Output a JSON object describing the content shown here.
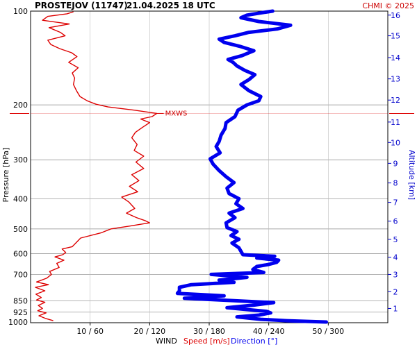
{
  "header": {
    "station": "PROSTEJOV (11747)",
    "datetime": "21.04.2025 18 UTC",
    "copyright": "CHMI © 2025"
  },
  "chart_data": {
    "type": "line",
    "y_axis": {
      "label": "Pressure [hPa]",
      "scale": "log",
      "range": [
        1000,
        100
      ],
      "ticks": [
        100,
        200,
        300,
        400,
        500,
        600,
        700,
        850,
        925,
        1000
      ]
    },
    "x_axis": {
      "title": "WIND",
      "speed_label": "Speed [m/s]",
      "direction_label": "Direction [°]",
      "ticks": [
        "10 / 60",
        "20 / 120",
        "30 / 180",
        "40 / 240",
        "50 / 300"
      ],
      "speed_range": [
        0,
        60
      ],
      "direction_range": [
        0,
        360
      ]
    },
    "altitude_axis": {
      "label": "Altitude [km]",
      "ticks": [
        1,
        2,
        3,
        4,
        5,
        6,
        7,
        8,
        9,
        10,
        11,
        12,
        13,
        14,
        15,
        16
      ]
    },
    "altitude_km_to_hpa": [
      [
        1,
        900
      ],
      [
        2,
        795
      ],
      [
        3,
        700
      ],
      [
        4,
        616
      ],
      [
        5,
        540
      ],
      [
        6,
        472
      ],
      [
        7,
        411
      ],
      [
        8,
        356
      ],
      [
        9,
        308
      ],
      [
        10,
        264
      ],
      [
        11,
        227
      ],
      [
        12,
        193
      ],
      [
        13,
        165
      ],
      [
        14,
        141
      ],
      [
        15,
        120
      ],
      [
        16,
        103
      ]
    ],
    "max_wind": {
      "label": "MXWS",
      "pressure": 213,
      "speed": 21.2
    },
    "series": [
      {
        "name": "Speed [m/s]",
        "color": "#dd0000",
        "points": [
          [
            985,
            3.8
          ],
          [
            970,
            2.6
          ],
          [
            950,
            1.4
          ],
          [
            930,
            2.6
          ],
          [
            915,
            1.2
          ],
          [
            900,
            2.0
          ],
          [
            880,
            1.3
          ],
          [
            860,
            2.4
          ],
          [
            845,
            1.0
          ],
          [
            830,
            1.8
          ],
          [
            810,
            0.9
          ],
          [
            790,
            2.4
          ],
          [
            770,
            0.8
          ],
          [
            755,
            3.0
          ],
          [
            740,
            1.0
          ],
          [
            720,
            2.7
          ],
          [
            700,
            3.5
          ],
          [
            685,
            3.2
          ],
          [
            665,
            4.8
          ],
          [
            645,
            4.4
          ],
          [
            630,
            5.6
          ],
          [
            615,
            4.1
          ],
          [
            605,
            5.4
          ],
          [
            595,
            5.9
          ],
          [
            580,
            5.3
          ],
          [
            570,
            7.0
          ],
          [
            550,
            7.8
          ],
          [
            535,
            8.4
          ],
          [
            515,
            11.8
          ],
          [
            500,
            13.5
          ],
          [
            490,
            16.5
          ],
          [
            478,
            20.0
          ],
          [
            470,
            19.2
          ],
          [
            460,
            17.8
          ],
          [
            445,
            16.1
          ],
          [
            430,
            17.5
          ],
          [
            410,
            16.5
          ],
          [
            395,
            15.3
          ],
          [
            380,
            18.0
          ],
          [
            365,
            16.6
          ],
          [
            350,
            18.2
          ],
          [
            335,
            17.0
          ],
          [
            320,
            19.0
          ],
          [
            305,
            17.7
          ],
          [
            292,
            19.0
          ],
          [
            280,
            17.4
          ],
          [
            268,
            17.9
          ],
          [
            255,
            17.0
          ],
          [
            245,
            17.6
          ],
          [
            236,
            18.8
          ],
          [
            228,
            20.0
          ],
          [
            222,
            18.5
          ],
          [
            218,
            20.4
          ],
          [
            213,
            21.2
          ],
          [
            208,
            17.5
          ],
          [
            203,
            13.0
          ],
          [
            199,
            11.0
          ],
          [
            194,
            9.5
          ],
          [
            188,
            8.3
          ],
          [
            180,
            7.7
          ],
          [
            172,
            7.2
          ],
          [
            164,
            7.4
          ],
          [
            158,
            7.0
          ],
          [
            152,
            8.0
          ],
          [
            146,
            6.4
          ],
          [
            140,
            7.8
          ],
          [
            136,
            6.9
          ],
          [
            132,
            4.9
          ],
          [
            128,
            3.4
          ],
          [
            124,
            2.9
          ],
          [
            120,
            5.8
          ],
          [
            117,
            5.0
          ],
          [
            113,
            3.1
          ],
          [
            110,
            6.5
          ],
          [
            107,
            2.0
          ],
          [
            104,
            2.9
          ],
          [
            102,
            6.1
          ],
          [
            100.5,
            7.2
          ]
        ]
      },
      {
        "name": "Direction [°]",
        "color": "#0000ee",
        "points": [
          [
            995,
            298
          ],
          [
            985,
            258
          ],
          [
            975,
            232
          ],
          [
            958,
            208
          ],
          [
            945,
            230
          ],
          [
            930,
            242
          ],
          [
            920,
            238
          ],
          [
            895,
            198
          ],
          [
            878,
            225
          ],
          [
            862,
            245
          ],
          [
            850,
            205
          ],
          [
            835,
            155
          ],
          [
            820,
            195
          ],
          [
            805,
            148
          ],
          [
            790,
            150
          ],
          [
            770,
            150
          ],
          [
            755,
            162
          ],
          [
            742,
            205
          ],
          [
            730,
            190
          ],
          [
            715,
            218
          ],
          [
            700,
            182
          ],
          [
            690,
            235
          ],
          [
            675,
            224
          ],
          [
            660,
            228
          ],
          [
            650,
            240
          ],
          [
            640,
            248
          ],
          [
            630,
            250
          ],
          [
            620,
            228
          ],
          [
            612,
            246
          ],
          [
            605,
            214
          ],
          [
            590,
            212
          ],
          [
            575,
            210
          ],
          [
            555,
            203
          ],
          [
            540,
            210
          ],
          [
            525,
            202
          ],
          [
            510,
            208
          ],
          [
            495,
            198
          ],
          [
            478,
            197
          ],
          [
            460,
            206
          ],
          [
            445,
            200
          ],
          [
            430,
            214
          ],
          [
            415,
            207
          ],
          [
            400,
            210
          ],
          [
            385,
            200
          ],
          [
            370,
            198
          ],
          [
            355,
            205
          ],
          [
            340,
            197
          ],
          [
            325,
            190
          ],
          [
            310,
            184
          ],
          [
            298,
            181
          ],
          [
            285,
            191
          ],
          [
            272,
            187
          ],
          [
            262,
            190
          ],
          [
            250,
            192
          ],
          [
            238,
            196
          ],
          [
            228,
            197
          ],
          [
            218,
            206
          ],
          [
            208,
            209
          ],
          [
            200,
            218
          ],
          [
            194,
            230
          ],
          [
            188,
            232
          ],
          [
            180,
            220
          ],
          [
            172,
            212
          ],
          [
            166,
            220
          ],
          [
            160,
            226
          ],
          [
            155,
            216
          ],
          [
            150,
            208
          ],
          [
            146,
            204
          ],
          [
            143,
            199
          ],
          [
            139,
            213
          ],
          [
            134,
            225
          ],
          [
            130,
            212
          ],
          [
            126,
            195
          ],
          [
            123,
            190
          ],
          [
            120,
            206
          ],
          [
            117,
            220
          ],
          [
            114,
            249
          ],
          [
            111,
            262
          ],
          [
            108,
            230
          ],
          [
            105,
            212
          ],
          [
            103,
            218
          ],
          [
            101,
            235
          ],
          [
            100,
            244
          ]
        ]
      }
    ]
  }
}
